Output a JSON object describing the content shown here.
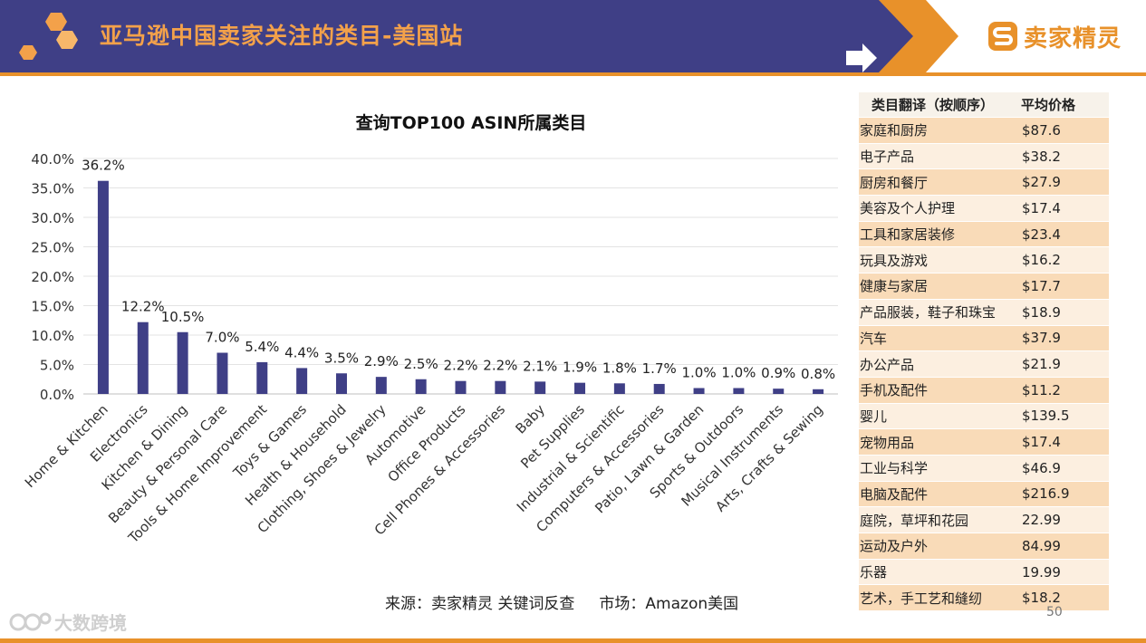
{
  "header": {
    "title": "亚马逊中国卖家关注的类目-美国站",
    "brand": "卖家精灵"
  },
  "chart_data": {
    "type": "bar",
    "title": "查询TOP100 ASIN所属类目",
    "categories": [
      "Home & Kitchen",
      "Electronics",
      "Kitchen & Dining",
      "Beauty & Personal Care",
      "Tools & Home Improvement",
      "Toys & Games",
      "Health & Household",
      "Clothing, Shoes & Jewelry",
      "Automotive",
      "Office Products",
      "Cell Phones & Accessories",
      "Baby",
      "Pet Supplies",
      "Industrial & Scientific",
      "Computers & Accessories",
      "Patio, Lawn & Garden",
      "Sports & Outdoors",
      "Musical Instruments",
      "Arts, Crafts & Sewing"
    ],
    "values": [
      36.2,
      12.2,
      10.5,
      7.0,
      5.4,
      4.4,
      3.5,
      2.9,
      2.5,
      2.2,
      2.2,
      2.1,
      1.9,
      1.8,
      1.7,
      1.0,
      1.0,
      0.9,
      0.8
    ],
    "value_labels": [
      "36.2%",
      "12.2%",
      "10.5%",
      "7.0%",
      "5.4%",
      "4.4%",
      "3.5%",
      "2.9%",
      "2.5%",
      "2.2%",
      "2.2%",
      "2.1%",
      "1.9%",
      "1.8%",
      "1.7%",
      "1.0%",
      "1.0%",
      "0.9%",
      "0.8%"
    ],
    "yticks": [
      "0.0%",
      "5.0%",
      "10.0%",
      "15.0%",
      "20.0%",
      "25.0%",
      "30.0%",
      "35.0%",
      "40.0%"
    ],
    "ylim": [
      0,
      40
    ],
    "grid": true,
    "bar_color": "#3f3f86"
  },
  "table": {
    "headers": [
      "类目翻译（按顺序）",
      "平均价格"
    ],
    "rows": [
      [
        "家庭和厨房",
        "$87.6"
      ],
      [
        "电子产品",
        "$38.2"
      ],
      [
        "厨房和餐厅",
        "$27.9"
      ],
      [
        "美容及个人护理",
        "$17.4"
      ],
      [
        "工具和家居装修",
        "$23.4"
      ],
      [
        "玩具及游戏",
        "$16.2"
      ],
      [
        "健康与家居",
        "$17.7"
      ],
      [
        "产品服装，鞋子和珠宝",
        "$18.9"
      ],
      [
        "汽车",
        "$37.9"
      ],
      [
        "办公产品",
        "$21.9"
      ],
      [
        "手机及配件",
        "$11.2"
      ],
      [
        "婴儿",
        "$139.5"
      ],
      [
        "宠物用品",
        "$17.4"
      ],
      [
        "工业与科学",
        "$46.9"
      ],
      [
        "电脑及配件",
        "$216.9"
      ],
      [
        "庭院，草坪和花园",
        "22.99"
      ],
      [
        "运动及户外",
        "84.99"
      ],
      [
        "乐器",
        "19.99"
      ],
      [
        "艺术，手工艺和缝纫",
        "$18.2"
      ]
    ]
  },
  "footer": {
    "source": "来源：卖家精灵 关键词反查     市场：Amazon美国",
    "page": "50",
    "watermark": "大数跨境"
  },
  "colors": {
    "header_band": "#3f3f86",
    "accent": "#e8912a",
    "title_text": "#f3a14a"
  },
  "icons": [
    "hexagon-logo-icon",
    "arrow-right-icon",
    "brand-logo-icon"
  ]
}
